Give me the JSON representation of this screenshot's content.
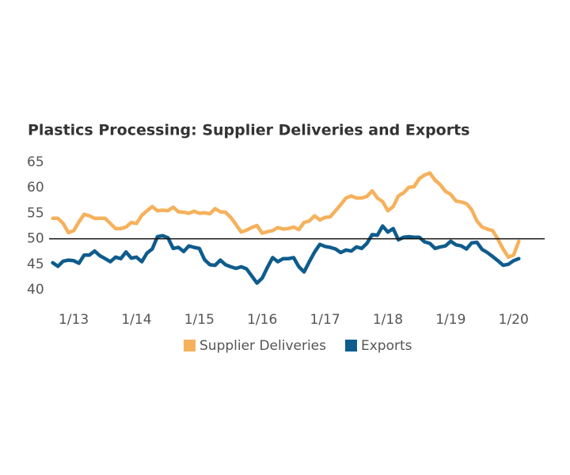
{
  "chart_data": {
    "type": "line",
    "title": "Plastics Processing: Supplier Deliveries and Exports",
    "categories": [
      null,
      null,
      null,
      null,
      "1/13",
      null,
      null,
      null,
      null,
      null,
      null,
      null,
      null,
      null,
      null,
      null,
      "1/14",
      null,
      null,
      null,
      null,
      null,
      null,
      null,
      null,
      null,
      null,
      null,
      "1/15",
      null,
      null,
      null,
      null,
      null,
      null,
      null,
      null,
      null,
      null,
      null,
      "1/16",
      null,
      null,
      null,
      null,
      null,
      null,
      null,
      null,
      null,
      null,
      null,
      "1/17",
      null,
      null,
      null,
      null,
      null,
      null,
      null,
      null,
      null,
      null,
      null,
      "1/18",
      null,
      null,
      null,
      null,
      null,
      null,
      null,
      null,
      null,
      null,
      null,
      "1/19",
      null,
      null,
      null,
      null,
      null,
      null,
      null,
      null,
      null,
      null,
      null,
      "1/20",
      null
    ],
    "series": [
      {
        "name": "Supplier Deliveries",
        "color": "#f6b15c",
        "values": [
          54,
          54,
          53,
          51.2,
          51.6,
          53.3,
          54.8,
          54.5,
          54,
          54,
          54,
          53,
          52,
          52,
          52.3,
          53.2,
          53,
          54.6,
          55.5,
          56.3,
          55.5,
          55.6,
          55.5,
          56.2,
          55.3,
          55.2,
          55,
          55.4,
          55,
          55.1,
          54.9,
          55.9,
          55.3,
          55.2,
          54.2,
          52.8,
          51.3,
          51.7,
          52.2,
          52.6,
          51.1,
          51.4,
          51.6,
          52.2,
          51.9,
          52,
          52.3,
          51.8,
          53.2,
          53.5,
          54.5,
          53.7,
          54.2,
          54.3,
          55.5,
          56.7,
          58,
          58.4,
          58,
          58,
          58.3,
          59.4,
          58,
          57.3,
          55.5,
          56.3,
          58.4,
          59,
          60.1,
          60.2,
          61.8,
          62.5,
          62.9,
          61.5,
          60.6,
          59.3,
          58.7,
          57.4,
          57.2,
          56.9,
          55.7,
          53.5,
          52.3,
          51.9,
          51.6,
          49.9,
          48,
          46.4,
          46.8,
          49.5
        ]
      },
      {
        "name": "Exports",
        "color": "#0e5c8d",
        "values": [
          45.3,
          44.6,
          45.6,
          45.8,
          45.7,
          45.2,
          46.8,
          46.8,
          47.6,
          46.7,
          46.1,
          45.5,
          46.4,
          46.1,
          47.4,
          46.2,
          46.4,
          45.5,
          47.2,
          48,
          50.4,
          50.6,
          50.2,
          48.1,
          48.3,
          47.5,
          48.6,
          48.3,
          48.1,
          45.9,
          44.9,
          44.8,
          45.8,
          44.9,
          44.5,
          44.2,
          44.5,
          44.1,
          42.7,
          41.3,
          42.3,
          44.4,
          46.3,
          45.5,
          46.1,
          46.1,
          46.3,
          44.5,
          43.5,
          45.5,
          47.4,
          48.9,
          48.5,
          48.3,
          48,
          47.3,
          47.8,
          47.6,
          48.4,
          48.1,
          49.1,
          50.8,
          50.7,
          52.5,
          51.3,
          52,
          49.8,
          50.3,
          50.4,
          50.3,
          50.3,
          49.4,
          49.1,
          48.1,
          48.4,
          48.6,
          49.5,
          48.8,
          48.6,
          48,
          49.2,
          49.3,
          47.9,
          47.3,
          46.5,
          45.7,
          44.8,
          45,
          45.7,
          46.1
        ]
      }
    ],
    "ylim": [
      40,
      65
    ],
    "yticks": [
      40,
      45,
      50,
      55,
      60,
      65
    ],
    "reference_line": 50,
    "grid": false,
    "legend": "bottom"
  }
}
